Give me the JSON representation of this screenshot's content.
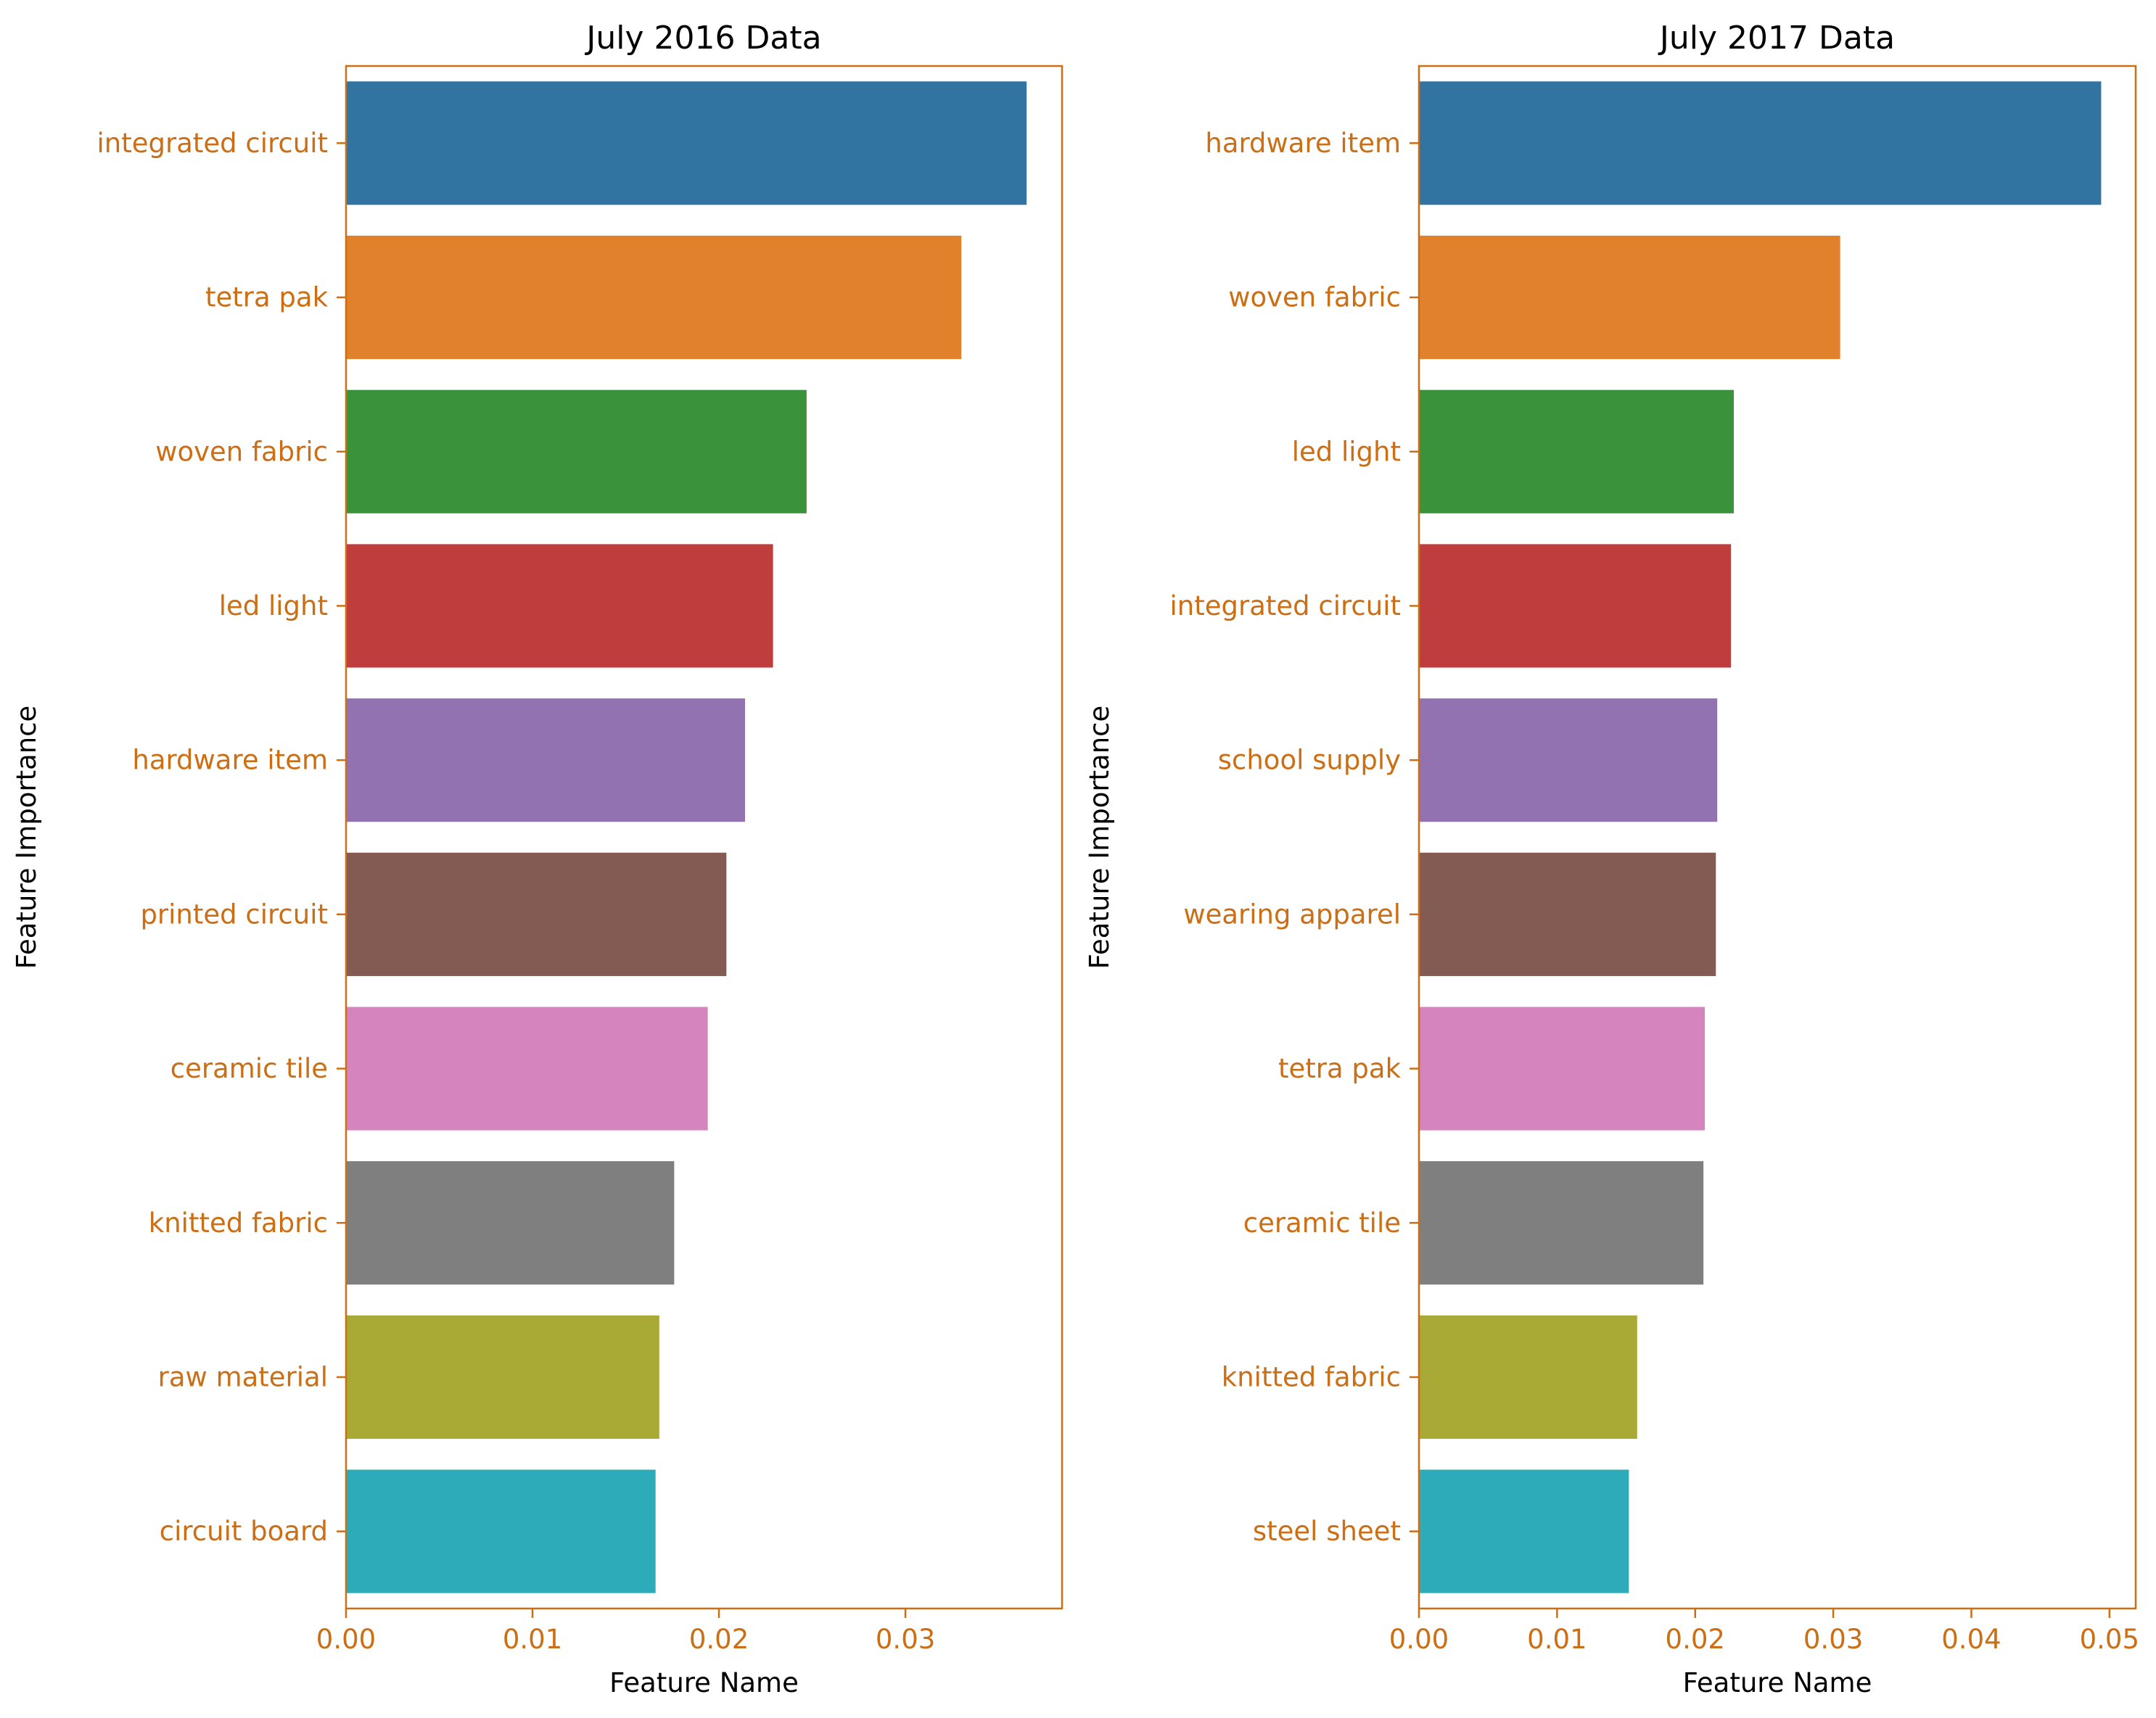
{
  "style": {
    "spine_color": "#cc6e14",
    "tick_label_color": "#cc6e14",
    "text_color": "#000000",
    "background": "#ffffff"
  },
  "chart_data": [
    {
      "type": "bar",
      "orientation": "horizontal",
      "title": "July 2016 Data",
      "xlabel": "Feature Name",
      "ylabel": "Feature Importance",
      "categories": [
        "integrated circuit",
        "tetra pak",
        "woven fabric",
        "led light",
        "hardware item",
        "printed circuit",
        "ceramic tile",
        "knitted fabric",
        "raw material",
        "circuit board"
      ],
      "values": [
        0.0365,
        0.033,
        0.0247,
        0.0229,
        0.0214,
        0.0204,
        0.0194,
        0.0176,
        0.0168,
        0.0166
      ],
      "colors": [
        "#3274a1",
        "#e1812c",
        "#3a923a",
        "#c03d3e",
        "#9372b2",
        "#845b53",
        "#d684bd",
        "#7f7f7f",
        "#a9aa35",
        "#2eabb8"
      ],
      "xlim": [
        0,
        0.0384
      ],
      "xticks": [
        0.0,
        0.01,
        0.02,
        0.03
      ],
      "xtick_labels": [
        "0.00",
        "0.01",
        "0.02",
        "0.03"
      ],
      "grid": false,
      "legend": "none"
    },
    {
      "type": "bar",
      "orientation": "horizontal",
      "title": "July 2017 Data",
      "xlabel": "Feature Name",
      "ylabel": "Feature Importance",
      "categories": [
        "hardware item",
        "woven fabric",
        "led light",
        "integrated circuit",
        "school supply",
        "wearing apparel",
        "tetra pak",
        "ceramic tile",
        "knitted fabric",
        "steel sheet"
      ],
      "values": [
        0.0494,
        0.0305,
        0.0228,
        0.0226,
        0.0216,
        0.0215,
        0.0207,
        0.0206,
        0.0158,
        0.0152
      ],
      "colors": [
        "#3274a1",
        "#e1812c",
        "#3a923a",
        "#c03d3e",
        "#9372b2",
        "#845b53",
        "#d684bd",
        "#7f7f7f",
        "#a9aa35",
        "#2eabb8"
      ],
      "xlim": [
        0,
        0.0519
      ],
      "xticks": [
        0.0,
        0.01,
        0.02,
        0.03,
        0.04,
        0.05
      ],
      "xtick_labels": [
        "0.00",
        "0.01",
        "0.02",
        "0.03",
        "0.04",
        "0.05"
      ],
      "grid": false,
      "legend": "none"
    }
  ]
}
